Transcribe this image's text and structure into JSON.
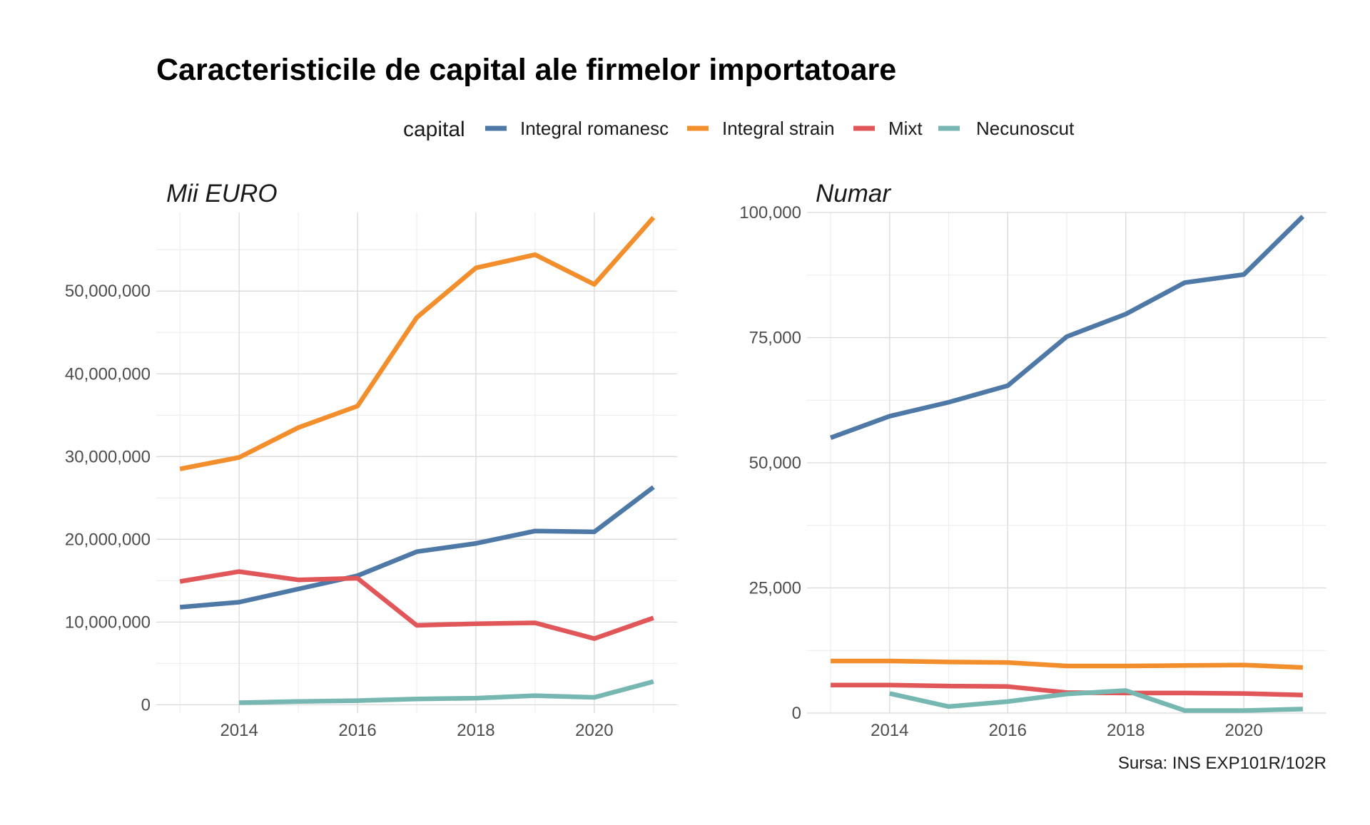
{
  "title": "Caracteristicile de capital ale firmelor importatoare",
  "legend": {
    "title": "capital",
    "items": [
      {
        "label": "Integral romanesc",
        "color": "#4e79a7"
      },
      {
        "label": "Integral strain",
        "color": "#f28e2b"
      },
      {
        "label": "Mixt",
        "color": "#e15759"
      },
      {
        "label": "Necunoscut",
        "color": "#76b7b2"
      }
    ]
  },
  "caption": "Sursa: INS EXP101R/102R",
  "chart_data": [
    {
      "type": "line",
      "title": "Mii EURO",
      "x": [
        2013,
        2014,
        2015,
        2016,
        2017,
        2018,
        2019,
        2020,
        2021
      ],
      "xlim": [
        2012.6,
        2021.4
      ],
      "ylim": [
        -1000000,
        59500000
      ],
      "x_ticks": [
        "2014",
        "2016",
        "2018",
        "2020"
      ],
      "x_tick_values": [
        2014,
        2016,
        2018,
        2020
      ],
      "y_ticks": [
        "0",
        "10,000,000",
        "20,000,000",
        "30,000,000",
        "40,000,000",
        "50,000,000"
      ],
      "y_tick_values": [
        0,
        10000000,
        20000000,
        30000000,
        40000000,
        50000000
      ],
      "grid": true,
      "series": [
        {
          "name": "Integral romanesc",
          "color": "#4e79a7",
          "values": [
            11800000,
            12400000,
            14000000,
            15600000,
            18500000,
            19500000,
            21000000,
            20900000,
            26300000
          ]
        },
        {
          "name": "Integral strain",
          "color": "#f28e2b",
          "values": [
            28500000,
            29900000,
            33500000,
            36100000,
            46800000,
            52800000,
            54400000,
            50800000,
            58900000
          ]
        },
        {
          "name": "Mixt",
          "color": "#e15759",
          "values": [
            14900000,
            16100000,
            15100000,
            15300000,
            9600000,
            9800000,
            9900000,
            8000000,
            10500000
          ]
        },
        {
          "name": "Necunoscut",
          "color": "#76b7b2",
          "values": [
            null,
            250000,
            400000,
            500000,
            700000,
            800000,
            1100000,
            900000,
            2800000
          ]
        }
      ]
    },
    {
      "type": "line",
      "title": "Numar",
      "x": [
        2013,
        2014,
        2015,
        2016,
        2017,
        2018,
        2019,
        2020,
        2021
      ],
      "xlim": [
        2012.6,
        2021.4
      ],
      "ylim": [
        0,
        100000
      ],
      "x_ticks": [
        "2014",
        "2016",
        "2018",
        "2020"
      ],
      "x_tick_values": [
        2014,
        2016,
        2018,
        2020
      ],
      "y_ticks": [
        "0",
        "25,000",
        "50,000",
        "75,000",
        "100,000"
      ],
      "y_tick_values": [
        0,
        25000,
        50000,
        75000,
        100000
      ],
      "grid": true,
      "series": [
        {
          "name": "Integral romanesc",
          "color": "#4e79a7",
          "values": [
            55000,
            59300,
            62100,
            65400,
            75200,
            79700,
            86000,
            87600,
            99200
          ]
        },
        {
          "name": "Integral strain",
          "color": "#f28e2b",
          "values": [
            10400,
            10400,
            10200,
            10100,
            9400,
            9400,
            9500,
            9600,
            9100
          ]
        },
        {
          "name": "Mixt",
          "color": "#e15759",
          "values": [
            5600,
            5600,
            5400,
            5300,
            4100,
            4000,
            4000,
            3900,
            3600
          ]
        },
        {
          "name": "Necunoscut",
          "color": "#76b7b2",
          "values": [
            null,
            3900,
            1300,
            2300,
            3800,
            4500,
            500,
            500,
            800
          ]
        }
      ]
    }
  ]
}
